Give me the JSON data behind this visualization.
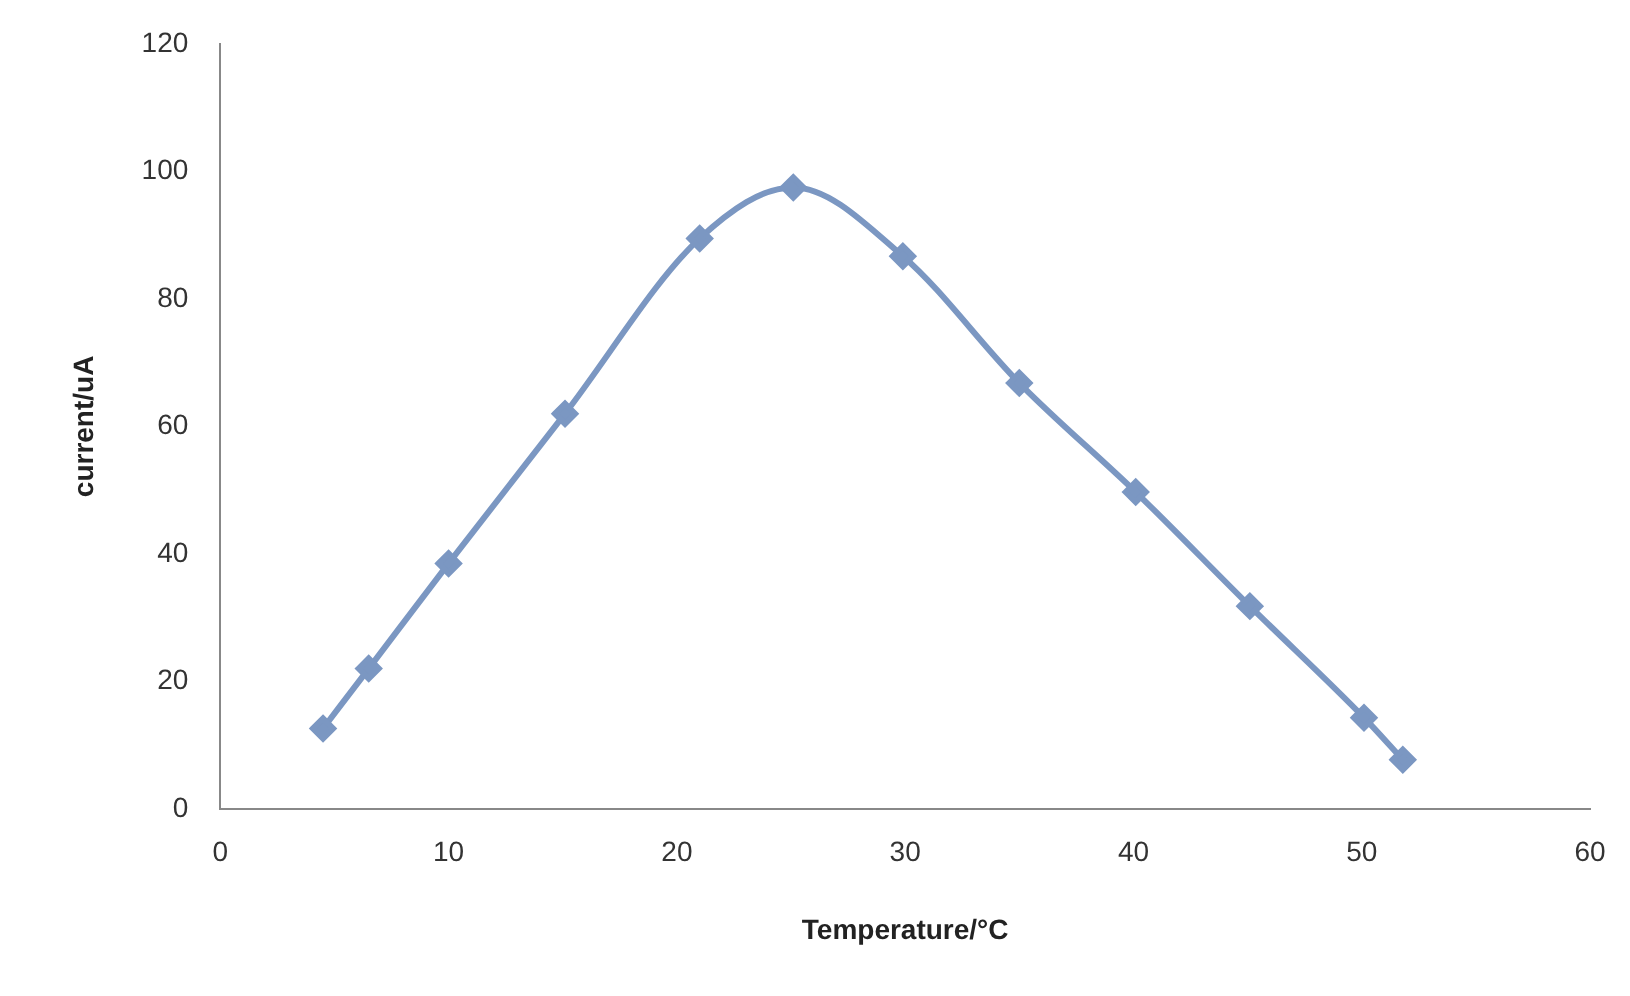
{
  "chart_data": {
    "type": "line",
    "xlabel": "Temperature/°C",
    "ylabel": "current/uA",
    "xlim": [
      0,
      60
    ],
    "xticks": [
      0,
      10,
      20,
      30,
      40,
      50,
      60
    ],
    "ylim": [
      0,
      120
    ],
    "yticks": [
      0,
      20,
      40,
      60,
      80,
      100,
      120
    ],
    "grid": false,
    "legend": false,
    "marker": "diamond",
    "line_style": "solid",
    "series": [
      {
        "color": "#7b97c2",
        "x": [
          4.5,
          6.5,
          10,
          15.1,
          21,
          25.1,
          29.9,
          35,
          40.1,
          45.1,
          50.1,
          51.8
        ],
        "values": [
          12.6,
          22,
          38.5,
          62,
          89.5,
          97.5,
          86.7,
          66.8,
          49.7,
          31.8,
          14.3,
          7.7
        ]
      }
    ]
  }
}
